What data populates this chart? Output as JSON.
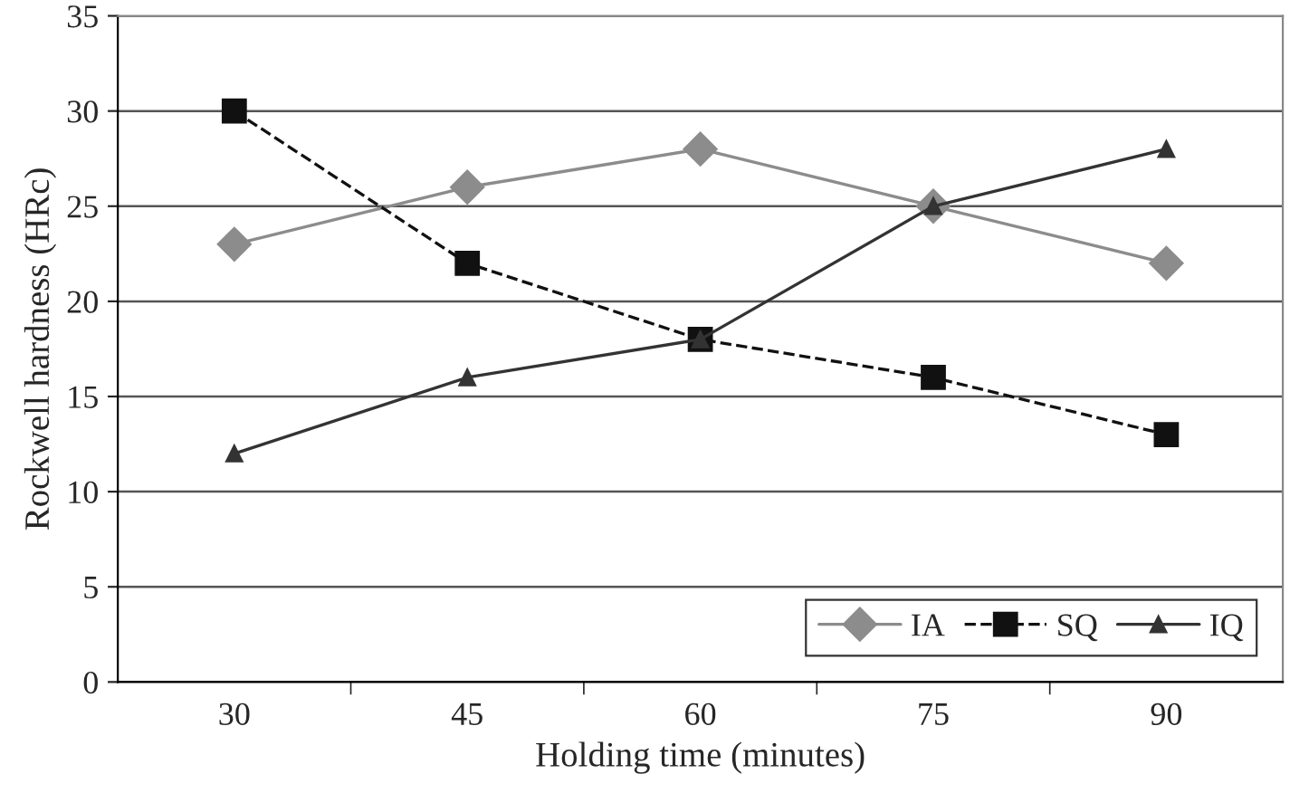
{
  "chart_data": {
    "type": "line",
    "xlabel": "Holding time (minutes)",
    "ylabel": "Rockwell hardness (HRc)",
    "categories": [
      "30",
      "45",
      "60",
      "75",
      "90"
    ],
    "series": [
      {
        "name": "IA",
        "color": "#8c8c8c",
        "values": [
          23,
          26,
          28,
          25,
          22
        ],
        "marker": "diamond",
        "line_style": "solid"
      },
      {
        "name": "SQ",
        "color": "#111111",
        "values": [
          30,
          22,
          18,
          16,
          13
        ],
        "marker": "square",
        "line_style": "dashed"
      },
      {
        "name": "IQ",
        "color": "#333333",
        "values": [
          12,
          16,
          18,
          25,
          28
        ],
        "marker": "triangle",
        "line_style": "solid"
      }
    ],
    "ylim": [
      0,
      35
    ],
    "yticks": [
      0,
      5,
      10,
      15,
      20,
      25,
      30,
      35
    ],
    "grid": "y",
    "legend": "bottom right"
  }
}
